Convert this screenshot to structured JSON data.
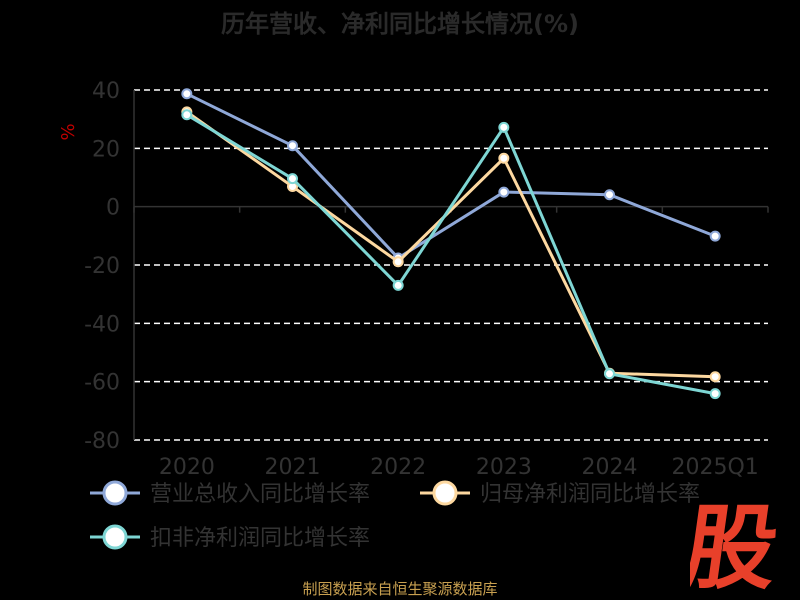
{
  "chart_data": {
    "type": "line",
    "title": "历年营收、净利同比增长情况(%)",
    "ylabel": "%",
    "categories": [
      "2020",
      "2021",
      "2022",
      "2023",
      "2024",
      "2025Q1"
    ],
    "ylim": [
      -80,
      40
    ],
    "yticks": [
      40,
      20,
      0,
      -20,
      -40,
      -60,
      -80
    ],
    "grid": true,
    "legend_position": "bottom",
    "series": [
      {
        "name": "营业总收入同比增长率",
        "color": "#8fa8d8",
        "values": [
          38.7,
          20.9,
          -17.6,
          5.0,
          4.1,
          -10.1
        ]
      },
      {
        "name": "归母净利润同比增长率",
        "color": "#fdd8a0",
        "values": [
          32.5,
          6.9,
          -18.9,
          16.6,
          -57.1,
          -58.3
        ]
      },
      {
        "name": "扣非净利润同比增长率",
        "color": "#7ed6d4",
        "values": [
          31.5,
          9.6,
          -27.0,
          27.2,
          -57.3,
          -64.1
        ]
      }
    ]
  },
  "source_note": "制图数据来自恒生聚源数据库",
  "logo_text": "股",
  "colors": {
    "background": "#000000",
    "logo": "#e8402a",
    "grid": "#ffffff"
  }
}
